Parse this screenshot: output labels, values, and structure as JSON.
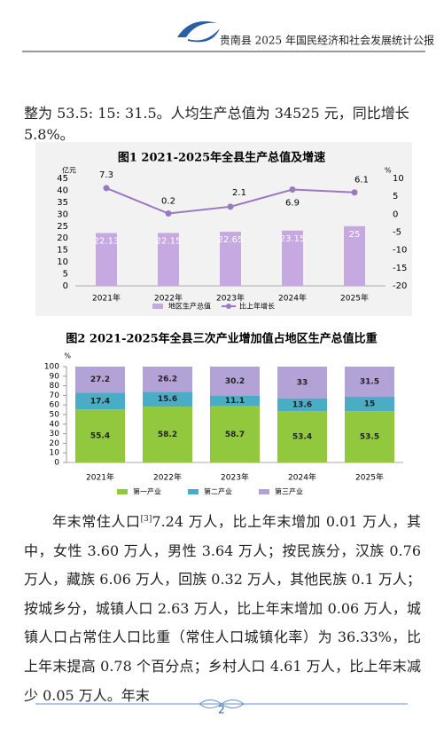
{
  "header": {
    "title": "贵南县 2025 年国民经济和社会发展统计公报"
  },
  "paragraph1": "整为 53.5: 15: 31.5。人均生产总值为 34525 元，同比增长 5.8%。",
  "chart_data": [
    {
      "type": "bar",
      "title": "图1 2021-2025年全县生产总值及增速",
      "y_label": "亿元",
      "y2_label": "%",
      "categories": [
        "2021年",
        "2022年",
        "2023年",
        "2024年",
        "2025年"
      ],
      "series": [
        {
          "name": "地区生产总值",
          "color": "#c6a9e0",
          "values": [
            22.13,
            22.15,
            22.65,
            23.15,
            25
          ]
        },
        {
          "name": "比上年增长",
          "color": "#9a78c2",
          "type": "line",
          "axis": "y2",
          "values": [
            7.3,
            0.2,
            2.1,
            6.9,
            6.1
          ]
        }
      ],
      "ylim": [
        0,
        45
      ],
      "yticks": [
        0,
        5,
        10,
        15,
        20,
        25,
        30,
        35,
        40,
        45
      ],
      "y2lim": [
        -20,
        10
      ],
      "y2ticks": [
        -20,
        -15,
        -10,
        -5,
        0,
        5,
        10
      ]
    },
    {
      "type": "bar",
      "stacked": true,
      "title": "图2 2021-2025年全县三次产业增加值占地区生产总值比重",
      "y_label": "%",
      "categories": [
        "2021年",
        "2022年",
        "2023年",
        "2024年",
        "2025年"
      ],
      "series": [
        {
          "name": "第一产业",
          "color": "#92c83e",
          "values": [
            55.4,
            58.2,
            58.7,
            53.4,
            53.5
          ]
        },
        {
          "name": "第二产业",
          "color": "#4bacc6",
          "values": [
            17.4,
            15.6,
            11.1,
            13.6,
            15
          ]
        },
        {
          "name": "第三产业",
          "color": "#b3a2d6",
          "values": [
            27.2,
            26.2,
            30.2,
            33,
            31.5
          ]
        }
      ],
      "ylim": [
        0,
        100
      ],
      "yticks": [
        0,
        10,
        20,
        30,
        40,
        50,
        60,
        70,
        80,
        90,
        100
      ]
    }
  ],
  "paragraph2": {
    "before": "年末常住人口",
    "note": "[3]",
    "after": "7.24 万人，比上年末增加 0.01 万人，其中，女性 3.60 万人，男性 3.64 万人；按民族分，汉族 0.76 万人，藏族 6.06 万人，回族 0.32 万人，其他民族 0.1 万人；按城乡分，城镇人口 2.63 万人，比上年末增加 0.06 万人，城镇人口占常住人口比重（常住人口城镇化率）为 36.33%，比上年末提高 0.78 个百分点；乡村人口 4.61 万人，比上年末减少 0.05 万人。年末"
  },
  "page_number": "2"
}
